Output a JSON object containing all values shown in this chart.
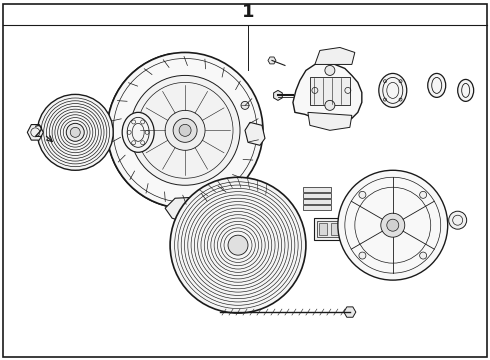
{
  "title": "1",
  "label_2": "2",
  "background_color": "#ffffff",
  "border_color": "#000000",
  "line_color": "#1a1a1a",
  "title_fontsize": 13,
  "label_fontsize": 11,
  "fig_width": 4.9,
  "fig_height": 3.6,
  "dpi": 100
}
